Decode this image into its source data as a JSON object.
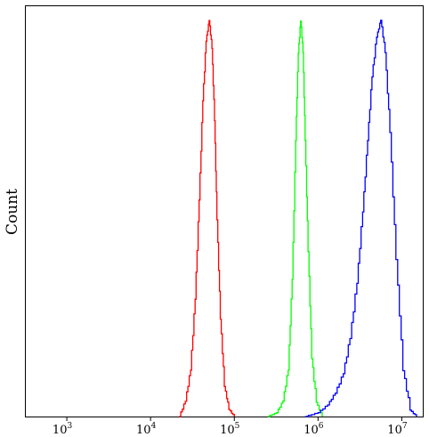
{
  "chart_data": {
    "type": "line",
    "title": "",
    "xlabel": "",
    "ylabel": "Count",
    "x_scale": "log",
    "xlim": [
      316,
      17800000
    ],
    "ylim": [
      0,
      1
    ],
    "grid": false,
    "legend": "none",
    "x_ticks": [
      {
        "base": "10",
        "exp": "3",
        "value": 1000
      },
      {
        "base": "10",
        "exp": "4",
        "value": 10000
      },
      {
        "base": "10",
        "exp": "5",
        "value": 100000
      },
      {
        "base": "10",
        "exp": "6",
        "value": 1000000
      },
      {
        "base": "10",
        "exp": "7",
        "value": 10000000
      }
    ],
    "series": [
      {
        "color": "#ff0000",
        "peak_x": 50000,
        "x": [
          22000,
          26000,
          30000,
          34000,
          38000,
          42000,
          46000,
          50000,
          54000,
          58000,
          62000,
          68000,
          76000,
          86000,
          100000
        ],
        "y": [
          0.0,
          0.04,
          0.12,
          0.3,
          0.55,
          0.8,
          0.95,
          1.0,
          0.93,
          0.75,
          0.5,
          0.25,
          0.08,
          0.02,
          0.0
        ]
      },
      {
        "color": "#00ff00",
        "peak_x": 620000,
        "x": [
          250000,
          320000,
          380000,
          440000,
          490000,
          540000,
          580000,
          620000,
          660000,
          700000,
          760000,
          840000,
          950000,
          1120000
        ],
        "y": [
          0.0,
          0.01,
          0.04,
          0.12,
          0.35,
          0.7,
          0.92,
          1.0,
          0.92,
          0.7,
          0.42,
          0.15,
          0.04,
          0.0
        ]
      },
      {
        "color": "#0000ff",
        "peak_x": 5600000,
        "x": [
          700000,
          1000000,
          1300000,
          1600000,
          2000000,
          2400000,
          2900000,
          3400000,
          3900000,
          4400000,
          5000000,
          5600000,
          6300000,
          7200000,
          8500000,
          10300000,
          12500000,
          15000000
        ],
        "y": [
          0.0,
          0.01,
          0.03,
          0.06,
          0.11,
          0.2,
          0.34,
          0.52,
          0.7,
          0.86,
          0.96,
          1.0,
          0.92,
          0.72,
          0.4,
          0.12,
          0.02,
          0.0
        ]
      }
    ]
  }
}
